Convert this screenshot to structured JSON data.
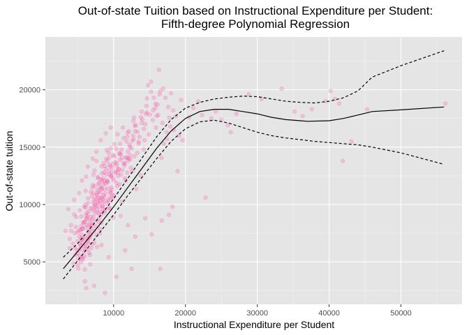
{
  "chart_data": {
    "type": "scatter",
    "title": "Out-of-state Tuition based on Instructional Expenditure per Student:",
    "subtitle": "Fifth-degree Polynomial Regression",
    "xlabel": "Instructional Expenditure per Student",
    "ylabel": "Out-of-state tuition",
    "xlim": [
      500,
      58500
    ],
    "ylim": [
      1300,
      24600
    ],
    "x_ticks": [
      10000,
      20000,
      30000,
      40000,
      50000
    ],
    "x_tick_labels": [
      "10000",
      "20000",
      "30000",
      "40000",
      "50000"
    ],
    "y_ticks": [
      5000,
      10000,
      15000,
      20000
    ],
    "y_tick_labels": [
      "5000",
      "10000",
      "15000",
      "20000"
    ],
    "grid": true,
    "background": "#e5e5e5",
    "point_color": "#ff3399",
    "point_opacity": 0.2,
    "fit": {
      "x": [
        3000,
        5000,
        8000,
        10000,
        12000,
        14000,
        16000,
        18000,
        20000,
        22000,
        24000,
        26000,
        28000,
        30000,
        32000,
        34000,
        36000,
        37000,
        40000,
        42000,
        44000,
        46000,
        50000,
        56000
      ],
      "y": [
        4400,
        5900,
        8200,
        9800,
        11500,
        13200,
        14900,
        16400,
        17500,
        18100,
        18300,
        18300,
        18100,
        17900,
        17600,
        17400,
        17300,
        17250,
        17300,
        17500,
        17800,
        18100,
        18250,
        18500
      ]
    },
    "upper_ci": {
      "x": [
        3000,
        5000,
        8000,
        10000,
        12000,
        14000,
        16000,
        18000,
        20000,
        22000,
        24000,
        26000,
        28000,
        30000,
        32000,
        34000,
        36000,
        38000,
        40000,
        42000,
        44000,
        46000,
        50000,
        56000
      ],
      "y": [
        5400,
        6600,
        8900,
        10500,
        12300,
        14100,
        15900,
        17400,
        18400,
        18900,
        19200,
        19350,
        19450,
        19400,
        19200,
        19000,
        18900,
        18850,
        19000,
        19300,
        19900,
        21100,
        22100,
        23400
      ]
    },
    "lower_ci": {
      "x": [
        3000,
        5000,
        8000,
        10000,
        12000,
        14000,
        16000,
        18000,
        20000,
        22000,
        24000,
        26000,
        28000,
        30000,
        32000,
        34000,
        36000,
        38000,
        40000,
        42000,
        44000,
        46000,
        50000,
        56000
      ],
      "y": [
        3500,
        5100,
        7500,
        9100,
        10800,
        12400,
        14000,
        15500,
        16600,
        17200,
        17350,
        17100,
        16700,
        16300,
        16000,
        15800,
        15650,
        15500,
        15400,
        15300,
        15200,
        15000,
        14500,
        13500
      ]
    },
    "points": [
      [
        8575,
        11725
      ],
      [
        7075,
        9637
      ],
      [
        5713,
        7102
      ],
      [
        8040,
        9812
      ],
      [
        16315,
        21745
      ],
      [
        6125,
        9725
      ],
      [
        7725,
        11258
      ],
      [
        14660,
        18015
      ],
      [
        11855,
        14080
      ],
      [
        5425,
        5350
      ],
      [
        6105,
        6475
      ],
      [
        5445,
        4975
      ],
      [
        4985,
        4725
      ],
      [
        8315,
        13325
      ],
      [
        6265,
        9275
      ],
      [
        9325,
        12925
      ],
      [
        9090,
        12125
      ],
      [
        7860,
        10560
      ],
      [
        4520,
        9120
      ],
      [
        10120,
        15260
      ],
      [
        5800,
        8450
      ],
      [
        6750,
        4790
      ],
      [
        8750,
        13345
      ],
      [
        17425,
        15700
      ],
      [
        12845,
        17575
      ],
      [
        13930,
        17100
      ],
      [
        15215,
        19825
      ],
      [
        11530,
        13590
      ],
      [
        8670,
        10600
      ],
      [
        12140,
        16390
      ],
      [
        7520,
        10470
      ],
      [
        10445,
        13610
      ],
      [
        9950,
        8860
      ],
      [
        7010,
        6540
      ],
      [
        15985,
        17715
      ],
      [
        11905,
        12770
      ],
      [
        12935,
        16860
      ],
      [
        4060,
        8200
      ],
      [
        6580,
        8250
      ],
      [
        9270,
        10270
      ],
      [
        8570,
        12280
      ],
      [
        6450,
        10540
      ],
      [
        3880,
        7010
      ],
      [
        5950,
        5500
      ],
      [
        14640,
        19240
      ],
      [
        7900,
        11800
      ],
      [
        12245,
        15005
      ],
      [
        6765,
        8020
      ],
      [
        7290,
        9450
      ],
      [
        10850,
        14360
      ],
      [
        5625,
        7860
      ],
      [
        9750,
        11270
      ],
      [
        8380,
        11390
      ],
      [
        7045,
        11430
      ],
      [
        11200,
        14050
      ],
      [
        13480,
        15480
      ],
      [
        17745,
        17565
      ],
      [
        6010,
        6100
      ],
      [
        4620,
        6240
      ],
      [
        5190,
        7720
      ],
      [
        8120,
        10550
      ],
      [
        10210,
        12740
      ],
      [
        9540,
        9660
      ],
      [
        7430,
        9910
      ],
      [
        16665,
        14070
      ],
      [
        6880,
        7890
      ],
      [
        9060,
        14750
      ],
      [
        8300,
        6460
      ],
      [
        4950,
        5740
      ],
      [
        5370,
        6420
      ],
      [
        10695,
        13070
      ],
      [
        8950,
        12630
      ],
      [
        6240,
        8710
      ],
      [
        7590,
        13790
      ],
      [
        15820,
        18780
      ],
      [
        13165,
        11350
      ],
      [
        8420,
        9840
      ],
      [
        9710,
        12810
      ],
      [
        11960,
        16260
      ],
      [
        5720,
        5200
      ],
      [
        4760,
        8040
      ],
      [
        9920,
        14320
      ],
      [
        7300,
        6680
      ],
      [
        14180,
        14800
      ],
      [
        6840,
        11050
      ],
      [
        8260,
        9110
      ],
      [
        5520,
        8960
      ],
      [
        10070,
        10810
      ],
      [
        12590,
        15540
      ],
      [
        7900,
        8480
      ],
      [
        6390,
        6970
      ],
      [
        15020,
        17830
      ],
      [
        9400,
        13480
      ],
      [
        8670,
        12020
      ],
      [
        5080,
        4410
      ],
      [
        11670,
        12090
      ],
      [
        7160,
        10150
      ],
      [
        5990,
        4340
      ],
      [
        13780,
        12530
      ],
      [
        9210,
        11950
      ],
      [
        6650,
        7590
      ],
      [
        10540,
        16120
      ],
      [
        7630,
        7340
      ],
      [
        4340,
        6580
      ],
      [
        8850,
        10940
      ],
      [
        12310,
        13950
      ],
      [
        6080,
        9960
      ],
      [
        18375,
        16480
      ],
      [
        7840,
        12400
      ],
      [
        5640,
        6660
      ],
      [
        9630,
        12460
      ],
      [
        10850,
        11760
      ],
      [
        6910,
        8230
      ],
      [
        11420,
        15780
      ],
      [
        8090,
        7860
      ],
      [
        5260,
        5530
      ],
      [
        14420,
        17010
      ],
      [
        7350,
        12950
      ],
      [
        9000,
        13980
      ],
      [
        6440,
        10120
      ],
      [
        12750,
        17280
      ],
      [
        4890,
        6010
      ],
      [
        8530,
        10380
      ],
      [
        10370,
        14860
      ],
      [
        7470,
        8630
      ],
      [
        5860,
        5880
      ],
      [
        13320,
        16330
      ],
      [
        9850,
        10790
      ],
      [
        6720,
        7180
      ],
      [
        11130,
        10230
      ],
      [
        8210,
        11060
      ],
      [
        15445,
        17370
      ],
      [
        6180,
        12440
      ],
      [
        7710,
        9580
      ],
      [
        9480,
        10620
      ],
      [
        4400,
        4900
      ],
      [
        10900,
        15300
      ],
      [
        8000,
        8800
      ],
      [
        5550,
        7400
      ],
      [
        12000,
        14600
      ],
      [
        7200,
        9000
      ],
      [
        9100,
        12000
      ],
      [
        6600,
        5800
      ],
      [
        13900,
        18100
      ],
      [
        8700,
        9300
      ],
      [
        5000,
        6800
      ],
      [
        10600,
        12500
      ],
      [
        7800,
        10200
      ],
      [
        6300,
        7300
      ],
      [
        11700,
        14100
      ],
      [
        8400,
        12700
      ],
      [
        9300,
        9700
      ],
      [
        5300,
        9500
      ],
      [
        14900,
        16100
      ],
      [
        7100,
        8300
      ],
      [
        10200,
        13700
      ],
      [
        6900,
        6200
      ],
      [
        8800,
        11300
      ],
      [
        12400,
        13200
      ],
      [
        5700,
        7900
      ],
      [
        9700,
        11500
      ],
      [
        7600,
        10800
      ],
      [
        11000,
        12600
      ],
      [
        6200,
        8800
      ],
      [
        13600,
        15900
      ],
      [
        8100,
        10300
      ],
      [
        4700,
        5600
      ],
      [
        10400,
        11900
      ],
      [
        7400,
        11600
      ],
      [
        9500,
        13300
      ],
      [
        6000,
        7000
      ],
      [
        12900,
        14200
      ],
      [
        8300,
        8400
      ],
      [
        5900,
        6400
      ],
      [
        11300,
        16700
      ],
      [
        7900,
        9200
      ],
      [
        9900,
        12300
      ],
      [
        6700,
        8600
      ],
      [
        14200,
        16600
      ],
      [
        8600,
        13600
      ],
      [
        5100,
        5200
      ],
      [
        10800,
        14500
      ],
      [
        7000,
        10700
      ],
      [
        9200,
        10400
      ],
      [
        6400,
        6800
      ],
      [
        12600,
        12900
      ],
      [
        8900,
        11800
      ],
      [
        5500,
        8100
      ],
      [
        11500,
        13400
      ],
      [
        7300,
        7700
      ],
      [
        13100,
        16900
      ],
      [
        8200,
        12200
      ],
      [
        6100,
        11200
      ],
      [
        10000,
        12100
      ],
      [
        7700,
        6300
      ],
      [
        9400,
        14100
      ],
      [
        5200,
        7200
      ],
      [
        12200,
        15200
      ],
      [
        8500,
        9900
      ],
      [
        6600,
        9400
      ],
      [
        14600,
        18600
      ],
      [
        7900,
        11100
      ],
      [
        10700,
        13100
      ],
      [
        6300,
        6100
      ],
      [
        9000,
        10100
      ],
      [
        11800,
        15500
      ],
      [
        8100,
        7500
      ],
      [
        5800,
        8400
      ],
      [
        13300,
        14500
      ],
      [
        7200,
        12600
      ],
      [
        9600,
        11000
      ],
      [
        6800,
        8900
      ],
      [
        12000,
        13800
      ],
      [
        8600,
        10800
      ],
      [
        5400,
        6200
      ],
      [
        10300,
        12900
      ],
      [
        7500,
        9800
      ],
      [
        11100,
        14800
      ],
      [
        6500,
        7700
      ],
      [
        9100,
        13800
      ],
      [
        8400,
        12100
      ],
      [
        15600,
        19300
      ],
      [
        7700,
        10900
      ],
      [
        10500,
        11600
      ],
      [
        6200,
        9100
      ],
      [
        12800,
        15700
      ],
      [
        8800,
        9500
      ],
      [
        5600,
        6900
      ],
      [
        11600,
        12300
      ],
      [
        7000,
        8700
      ],
      [
        9300,
        14500
      ],
      [
        6900,
        7400
      ],
      [
        13800,
        17600
      ],
      [
        8300,
        10600
      ],
      [
        5900,
        9800
      ],
      [
        10900,
        13900
      ],
      [
        7400,
        10000
      ],
      [
        9700,
        12500
      ],
      [
        6700,
        5600
      ],
      [
        12500,
        14900
      ],
      [
        8000,
        11900
      ],
      [
        5000,
        7600
      ],
      [
        11200,
        13000
      ],
      [
        7600,
        9300
      ],
      [
        9800,
        10500
      ],
      [
        6100,
        8000
      ],
      [
        14300,
        15600
      ],
      [
        8700,
        12800
      ],
      [
        5300,
        6600
      ],
      [
        10100,
        14200
      ],
      [
        7100,
        11700
      ],
      [
        9500,
        11100
      ],
      [
        6400,
        9000
      ],
      [
        13000,
        16400
      ],
      [
        8500,
        10200
      ],
      [
        5700,
        5400
      ],
      [
        11900,
        15900
      ],
      [
        7800,
        12300
      ],
      [
        9900,
        13500
      ],
      [
        6600,
        7100
      ],
      [
        12300,
        14300
      ],
      [
        8200,
        9400
      ],
      [
        4600,
        7500
      ],
      [
        10600,
        12800
      ],
      [
        7300,
        10400
      ],
      [
        9200,
        11400
      ],
      [
        6000,
        8500
      ],
      [
        13500,
        15300
      ],
      [
        8900,
        13100
      ],
      [
        5400,
        7800
      ],
      [
        11400,
        13600
      ],
      [
        7500,
        8100
      ],
      [
        9600,
        14900
      ],
      [
        6800,
        9700
      ],
      [
        12700,
        16000
      ],
      [
        8100,
        11500
      ],
      [
        5200,
        6000
      ],
      [
        10400,
        13400
      ],
      [
        7900,
        10100
      ],
      [
        9400,
        12600
      ],
      [
        6300,
        8200
      ],
      [
        14000,
        17400
      ],
      [
        8600,
        9600
      ],
      [
        5500,
        7000
      ],
      [
        11000,
        14400
      ],
      [
        7200,
        11000
      ],
      [
        9800,
        13200
      ],
      [
        6500,
        6600
      ],
      [
        12100,
        14000
      ],
      [
        8300,
        11400
      ],
      [
        16900,
        20100
      ],
      [
        17200,
        19300
      ],
      [
        15800,
        18400
      ],
      [
        18000,
        19700
      ],
      [
        16500,
        19900
      ],
      [
        14800,
        20400
      ],
      [
        17600,
        18500
      ],
      [
        15200,
        20700
      ],
      [
        16200,
        17800
      ],
      [
        18700,
        17700
      ],
      [
        19400,
        19100
      ],
      [
        17900,
        16800
      ],
      [
        15500,
        18200
      ],
      [
        16800,
        17100
      ],
      [
        14500,
        17900
      ],
      [
        19100,
        16000
      ],
      [
        17400,
        16300
      ],
      [
        15900,
        16700
      ],
      [
        18300,
        18200
      ],
      [
        16100,
        18700
      ],
      [
        19600,
        15600
      ],
      [
        20500,
        17600
      ],
      [
        18900,
        12900
      ],
      [
        17000,
        15300
      ],
      [
        16400,
        19600
      ],
      [
        21100,
        18400
      ],
      [
        22300,
        17800
      ],
      [
        23600,
        17500
      ],
      [
        21800,
        19000
      ],
      [
        24200,
        18100
      ],
      [
        25000,
        17400
      ],
      [
        26300,
        16300
      ],
      [
        25900,
        16900
      ],
      [
        27100,
        17900
      ],
      [
        22800,
        10600
      ],
      [
        28800,
        19600
      ],
      [
        30600,
        19200
      ],
      [
        33400,
        20100
      ],
      [
        36300,
        17700
      ],
      [
        35200,
        18100
      ],
      [
        37600,
        18300
      ],
      [
        39500,
        19000
      ],
      [
        40200,
        19900
      ],
      [
        40800,
        19200
      ],
      [
        41900,
        13800
      ],
      [
        43100,
        15500
      ],
      [
        41400,
        18800
      ],
      [
        45300,
        18300
      ],
      [
        56200,
        18800
      ],
      [
        18200,
        9800
      ],
      [
        16500,
        4400
      ],
      [
        12500,
        4400
      ],
      [
        8800,
        2300
      ],
      [
        6200,
        2700
      ],
      [
        6000,
        3300
      ],
      [
        7300,
        2900
      ],
      [
        9300,
        5400
      ],
      [
        10400,
        3700
      ],
      [
        11600,
        6000
      ],
      [
        13000,
        7200
      ],
      [
        14400,
        8800
      ],
      [
        15300,
        7400
      ],
      [
        16700,
        8600
      ],
      [
        17700,
        9100
      ],
      [
        12000,
        8200
      ],
      [
        11000,
        9000
      ],
      [
        3700,
        9600
      ],
      [
        4100,
        7700
      ],
      [
        4500,
        10400
      ],
      [
        5200,
        11000
      ],
      [
        3300,
        7700
      ],
      [
        3900,
        6200
      ],
      [
        4800,
        8900
      ],
      [
        5600,
        12100
      ],
      [
        6400,
        13300
      ],
      [
        7100,
        14000
      ],
      [
        7600,
        14600
      ],
      [
        8200,
        15600
      ],
      [
        8900,
        16200
      ],
      [
        9600,
        16700
      ]
    ]
  }
}
